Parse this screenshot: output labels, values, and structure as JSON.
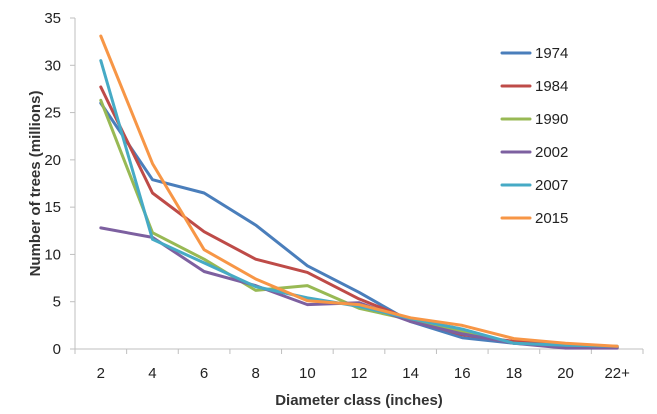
{
  "chart_data": {
    "type": "line",
    "title": "",
    "xlabel": "Diameter class (inches)",
    "ylabel": "Number of trees (millions)",
    "categories": [
      "2",
      "4",
      "6",
      "8",
      "10",
      "12",
      "14",
      "16",
      "18",
      "20",
      "22+"
    ],
    "ylim": [
      0,
      35
    ],
    "yticks": [
      0,
      5,
      10,
      15,
      20,
      25,
      30,
      35
    ],
    "grid": false,
    "legend_position": "right",
    "series": [
      {
        "name": "1974",
        "color": "#4a7ebb",
        "values": [
          26.0,
          17.9,
          16.5,
          13.1,
          8.8,
          6.0,
          2.9,
          1.2,
          0.6,
          0.3,
          0.2
        ]
      },
      {
        "name": "1984",
        "color": "#be4b48",
        "values": [
          27.7,
          16.5,
          12.4,
          9.5,
          8.1,
          5.3,
          3.1,
          1.5,
          0.8,
          0.4,
          0.2
        ]
      },
      {
        "name": "1990",
        "color": "#98b954",
        "values": [
          26.3,
          12.3,
          9.5,
          6.2,
          6.7,
          4.3,
          3.1,
          1.8,
          0.6,
          0.3,
          0.2
        ]
      },
      {
        "name": "2002",
        "color": "#7d60a0",
        "values": [
          12.8,
          11.8,
          8.2,
          6.7,
          4.7,
          4.9,
          2.9,
          1.6,
          0.6,
          0.1,
          0.1
        ]
      },
      {
        "name": "2007",
        "color": "#46aac5",
        "values": [
          30.5,
          11.6,
          9.1,
          6.6,
          5.4,
          4.5,
          3.2,
          2.1,
          0.6,
          0.4,
          0.3
        ]
      },
      {
        "name": "2015",
        "color": "#f79646",
        "values": [
          33.1,
          19.6,
          10.5,
          7.4,
          5.1,
          4.7,
          3.3,
          2.5,
          1.1,
          0.6,
          0.3
        ]
      }
    ]
  }
}
